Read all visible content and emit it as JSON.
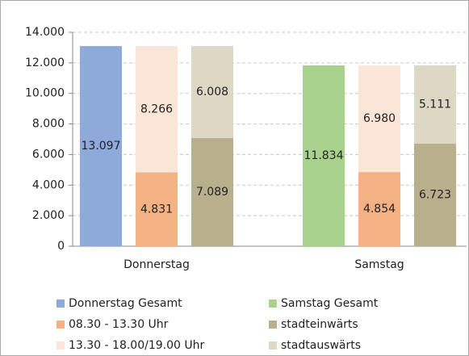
{
  "chart_data": {
    "type": "stacked_bar",
    "categories": [
      "Donnerstag",
      "Samstag"
    ],
    "series": [
      {
        "name": "Donnerstag Gesamt",
        "color": "#8eaadb",
        "stack": 0,
        "values": [
          13097,
          null
        ],
        "value_labels": [
          "13.097",
          null
        ]
      },
      {
        "name": "Samstag Gesamt",
        "color": "#a9d18e",
        "stack": 0,
        "values": [
          null,
          11834
        ],
        "value_labels": [
          null,
          "11.834"
        ]
      },
      {
        "name": "08.30 - 13.30 Uhr",
        "color": "#f4b183",
        "stack": 1,
        "values": [
          4831,
          4854
        ],
        "value_labels": [
          "4.831",
          "4.854"
        ]
      },
      {
        "name": "stadteinwärts",
        "color": "#b8b08c",
        "stack": 2,
        "values": [
          7089,
          6723
        ],
        "value_labels": [
          "7.089",
          "6.723"
        ]
      },
      {
        "name": "13.30 - 18.00/19.00 Uhr",
        "color": "#fbe5d6",
        "stack": 1,
        "values": [
          8266,
          6980
        ],
        "value_labels": [
          "8.266",
          "6.980"
        ]
      },
      {
        "name": "stadtauswärts",
        "color": "#dcd8c4",
        "stack": 2,
        "values": [
          6008,
          5111
        ],
        "value_labels": [
          "6.008",
          "5.111"
        ]
      }
    ],
    "ylim": [
      0,
      14000
    ],
    "yticks": [
      0,
      {
        "value": 2000,
        "label": "2.000"
      },
      {
        "value": 4000,
        "label": "4.000"
      },
      {
        "value": 6000,
        "label": "6.000"
      },
      {
        "value": 8000,
        "label": "8.000"
      },
      {
        "value": 10000,
        "label": "10.000"
      },
      {
        "value": 12000,
        "label": "12.000"
      },
      {
        "value": 14000,
        "label": "14.000"
      }
    ],
    "grid": true,
    "legend": "bottom"
  }
}
